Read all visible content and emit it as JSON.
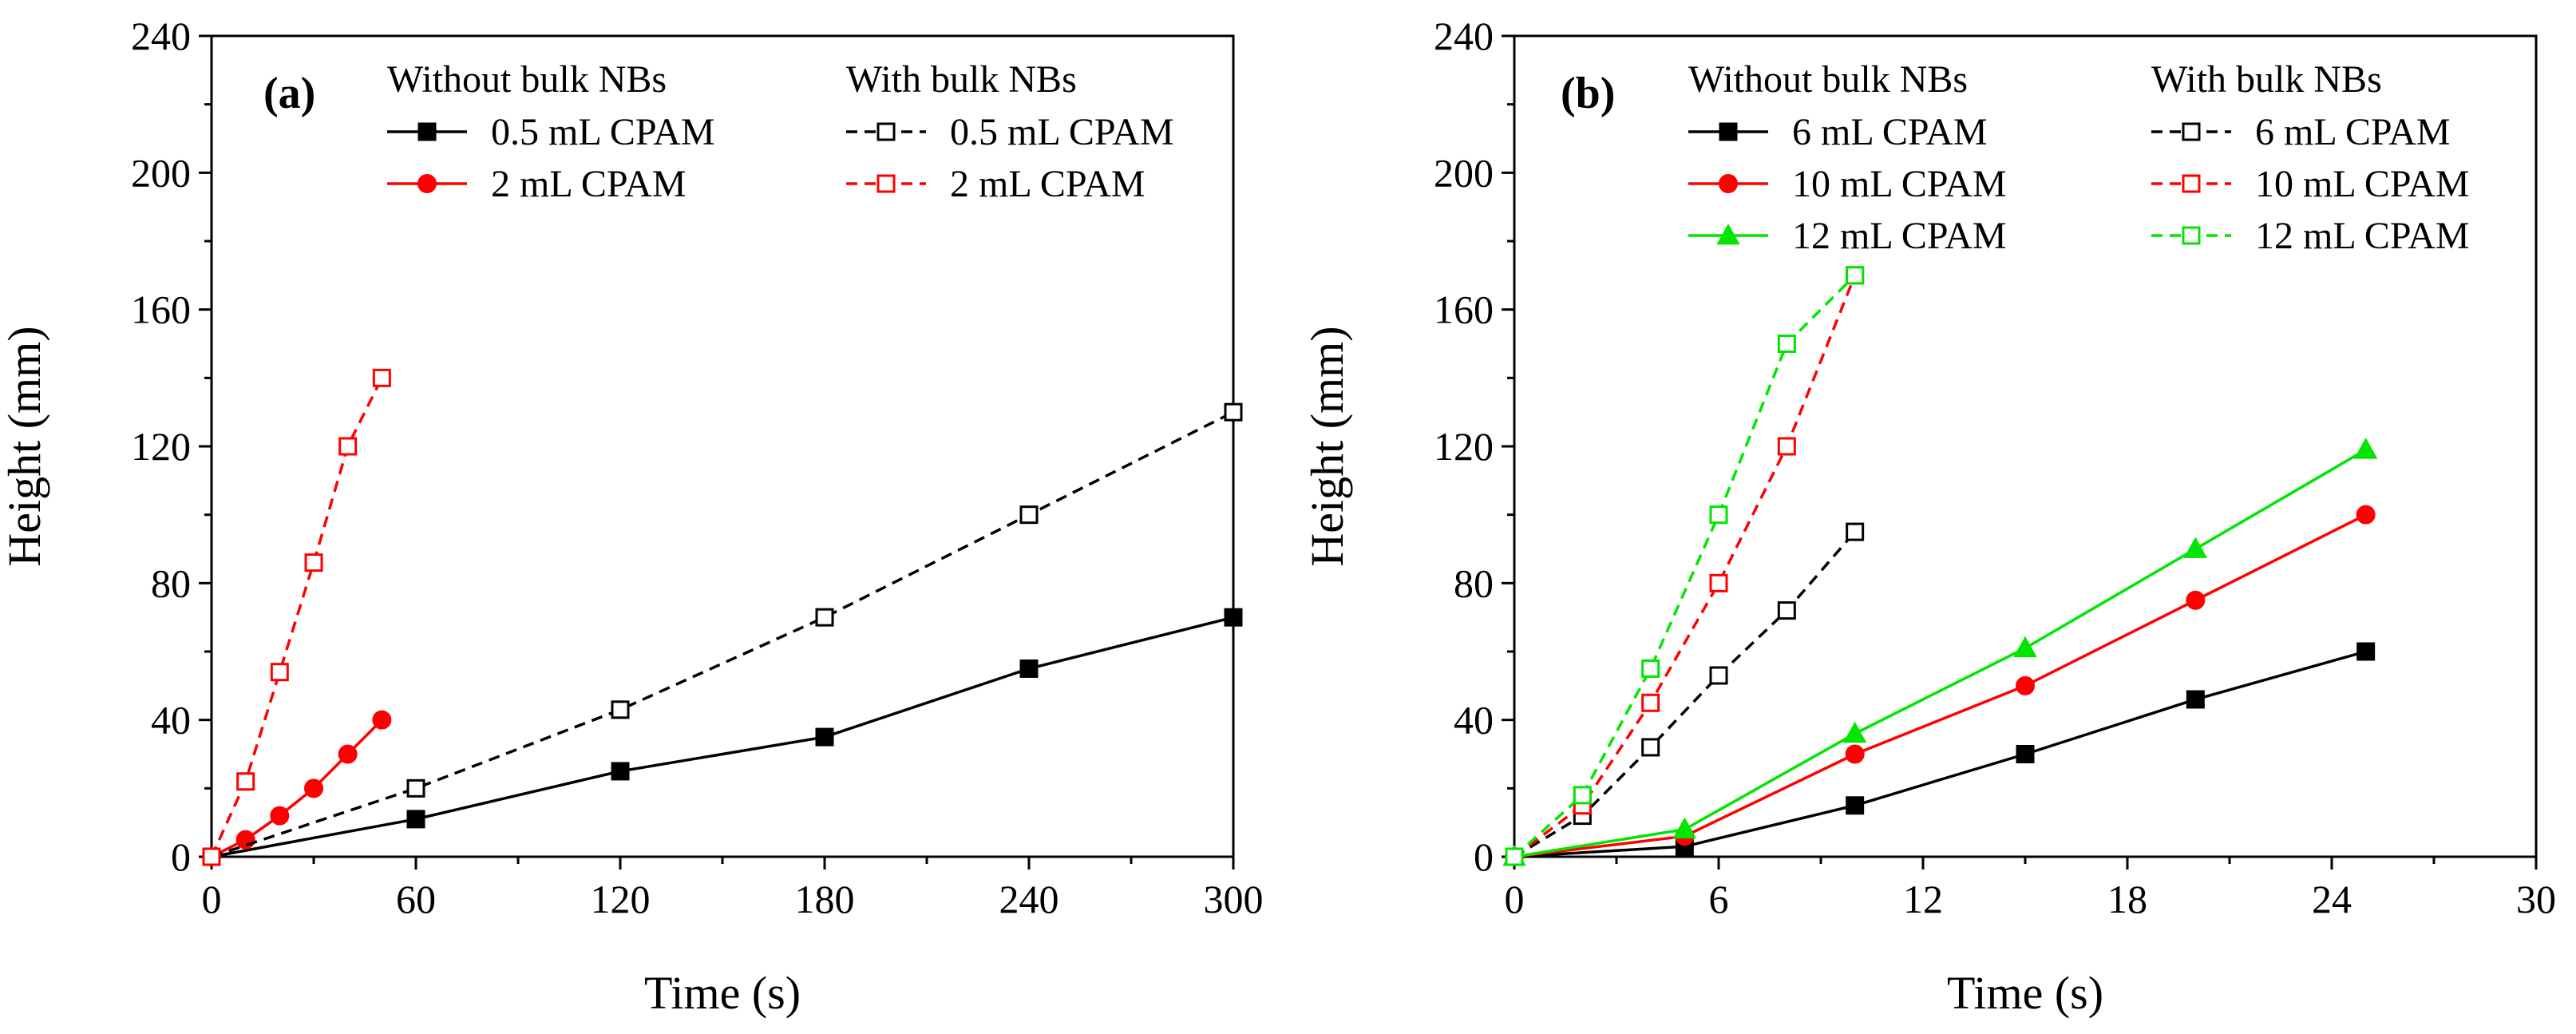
{
  "chart_data": [
    {
      "type": "line",
      "panel_label": "(a)",
      "xlabel": "Time (s)",
      "ylabel": "Height (mm)",
      "xlim": [
        0,
        300
      ],
      "ylim": [
        0,
        240
      ],
      "xticks": [
        0,
        60,
        120,
        180,
        240,
        300
      ],
      "yticks": [
        0,
        40,
        80,
        120,
        160,
        200,
        240
      ],
      "legend": {
        "placement": "top",
        "group_without": "Without bulk NBs",
        "group_with": "With bulk NBs"
      },
      "series": [
        {
          "name": "0.5 mL CPAM",
          "group": "without",
          "color": "#000000",
          "marker": "square",
          "filled": true,
          "dashed": false,
          "x": [
            0,
            60,
            120,
            180,
            240,
            300
          ],
          "y": [
            0,
            11,
            25,
            35,
            55,
            70
          ]
        },
        {
          "name": "2 mL CPAM",
          "group": "without",
          "color": "#ff0000",
          "marker": "circle",
          "filled": true,
          "dashed": false,
          "x": [
            0,
            10,
            20,
            30,
            40,
            50
          ],
          "y": [
            0,
            5,
            12,
            20,
            30,
            40
          ]
        },
        {
          "name": "0.5 mL CPAM",
          "group": "with",
          "color": "#000000",
          "marker": "square",
          "filled": false,
          "dashed": true,
          "x": [
            0,
            60,
            120,
            180,
            240,
            300
          ],
          "y": [
            0,
            20,
            43,
            70,
            100,
            130
          ]
        },
        {
          "name": "2 mL CPAM",
          "group": "with",
          "color": "#ff0000",
          "marker": "square",
          "filled": false,
          "dashed": true,
          "x": [
            0,
            10,
            20,
            30,
            40,
            50
          ],
          "y": [
            0,
            22,
            54,
            86,
            120,
            140
          ]
        }
      ]
    },
    {
      "type": "line",
      "panel_label": "(b)",
      "xlabel": "Time (s)",
      "ylabel": "Height (mm)",
      "xlim": [
        0,
        30
      ],
      "ylim": [
        0,
        240
      ],
      "xticks": [
        0,
        6,
        12,
        18,
        24,
        30
      ],
      "yticks": [
        0,
        40,
        80,
        120,
        160,
        200,
        240
      ],
      "legend": {
        "placement": "top",
        "group_without": "Without bulk NBs",
        "group_with": "With bulk NBs"
      },
      "series": [
        {
          "name": "6 mL CPAM",
          "group": "without",
          "color": "#000000",
          "marker": "square",
          "filled": true,
          "dashed": false,
          "x": [
            0,
            5,
            10,
            15,
            20,
            25
          ],
          "y": [
            0,
            3,
            15,
            30,
            46,
            60
          ]
        },
        {
          "name": "10 mL CPAM",
          "group": "without",
          "color": "#ff0000",
          "marker": "circle",
          "filled": true,
          "dashed": false,
          "x": [
            0,
            5,
            10,
            15,
            20,
            25
          ],
          "y": [
            0,
            6,
            30,
            50,
            75,
            100
          ]
        },
        {
          "name": "12 mL CPAM",
          "group": "without",
          "color": "#00e600",
          "marker": "triangle",
          "filled": true,
          "dashed": false,
          "x": [
            0,
            5,
            10,
            15,
            20,
            25
          ],
          "y": [
            0,
            8,
            36,
            61,
            90,
            119
          ]
        },
        {
          "name": "6 mL CPAM",
          "group": "with",
          "color": "#000000",
          "marker": "square",
          "filled": false,
          "dashed": true,
          "x": [
            0,
            2,
            4,
            6,
            8,
            10
          ],
          "y": [
            0,
            12,
            32,
            53,
            72,
            95
          ]
        },
        {
          "name": "10 mL CPAM",
          "group": "with",
          "color": "#ff0000",
          "marker": "square",
          "filled": false,
          "dashed": true,
          "x": [
            0,
            2,
            4,
            6,
            8,
            10
          ],
          "y": [
            0,
            15,
            45,
            80,
            120,
            170
          ]
        },
        {
          "name": "12 mL CPAM",
          "group": "with",
          "color": "#00e600",
          "marker": "square",
          "filled": false,
          "dashed": true,
          "x": [
            0,
            2,
            4,
            6,
            8,
            10
          ],
          "y": [
            0,
            18,
            55,
            100,
            150,
            170
          ]
        }
      ]
    }
  ]
}
